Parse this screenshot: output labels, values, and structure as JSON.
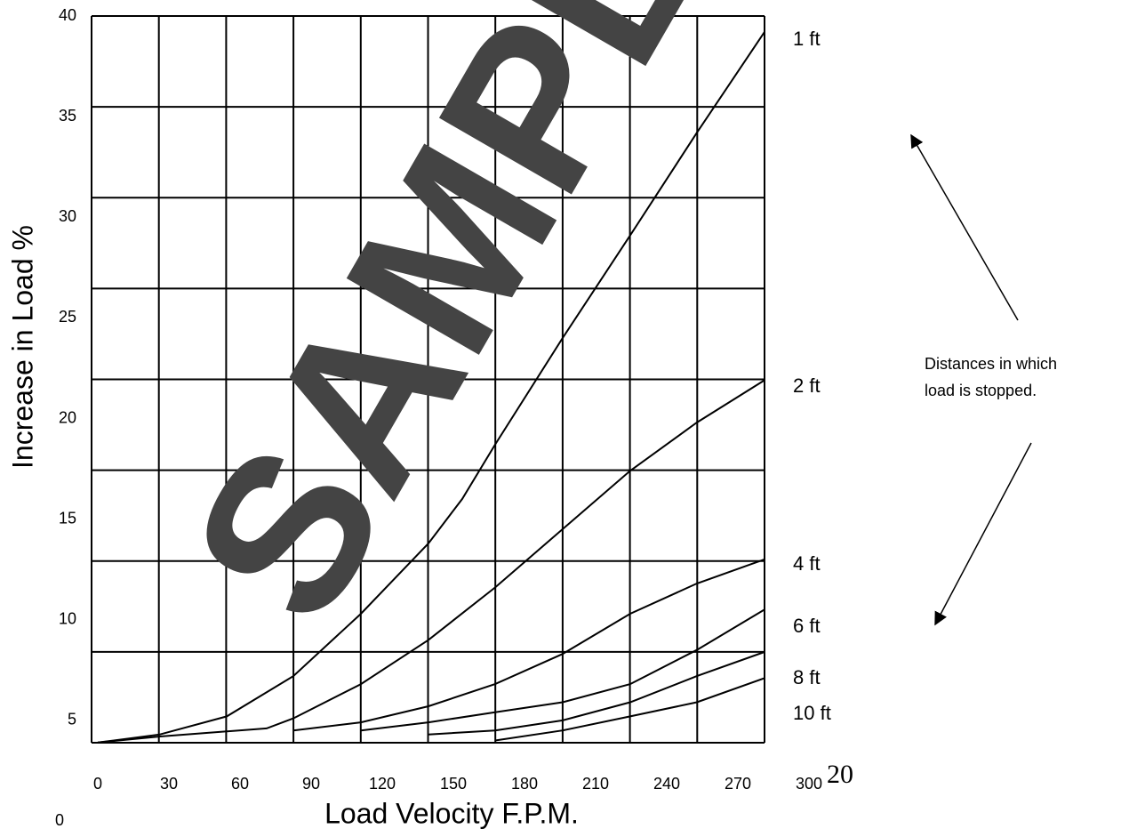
{
  "chart_data": {
    "type": "line",
    "x_label": "Load Velocity F.P.M.",
    "y_label": "Increase in Load %",
    "watermark": "SAMPLE",
    "annotation": [
      "Distances in which",
      "load is stopped."
    ],
    "page_number": "20",
    "xlim": [
      0,
      300
    ],
    "ylim": [
      0,
      40
    ],
    "xticks": [
      0,
      30,
      60,
      90,
      120,
      150,
      180,
      210,
      240,
      270,
      300
    ],
    "yticks": [
      0,
      5,
      10,
      15,
      20,
      25,
      30,
      35,
      40
    ],
    "grid": true,
    "series": [
      {
        "name": "1 ft",
        "color": "#000000",
        "x": [
          0,
          26.2,
          54.4,
          82.5,
          111,
          139.5,
          153.7,
          167.6,
          196.1,
          224.6,
          252.7,
          281.2
        ],
        "values": [
          3.9,
          4.3,
          5.2,
          7.2,
          10.3,
          13.8,
          16.0,
          18.7,
          24.0,
          29.1,
          34.2,
          39.2
        ]
      },
      {
        "name": "2 ft",
        "color": "#000000",
        "x": [
          0,
          26.2,
          71.2,
          82.5,
          111,
          139.5,
          167.6,
          196.1,
          224.6,
          252.7,
          281.2
        ],
        "values": [
          3.9,
          4.2,
          4.6,
          5.1,
          6.8,
          9.0,
          11.6,
          14.5,
          17.4,
          19.8,
          21.9
        ]
      },
      {
        "name": "4 ft",
        "color": "#000000",
        "x": [
          82.5,
          111,
          139.5,
          167.6,
          196.1,
          224.6,
          252.7,
          281.2
        ],
        "values": [
          4.5,
          4.9,
          5.7,
          6.8,
          8.3,
          10.3,
          11.8,
          13.0
        ]
      },
      {
        "name": "6 ft",
        "color": "#000000",
        "x": [
          111,
          139.5,
          167.6,
          196.1,
          224.6,
          252.7,
          281.2
        ],
        "values": [
          4.5,
          4.9,
          5.4,
          5.9,
          6.8,
          8.5,
          10.5
        ]
      },
      {
        "name": "8 ft",
        "color": "#000000",
        "x": [
          139.5,
          167.6,
          196.1,
          224.6,
          252.7,
          281.2
        ],
        "values": [
          4.3,
          4.5,
          5.0,
          5.9,
          7.2,
          8.4
        ]
      },
      {
        "name": "10 ft",
        "color": "#000000",
        "x": [
          167.6,
          196.1,
          224.6,
          252.7,
          281.2
        ],
        "values": [
          4.0,
          4.5,
          5.2,
          5.9,
          7.1
        ]
      }
    ]
  }
}
